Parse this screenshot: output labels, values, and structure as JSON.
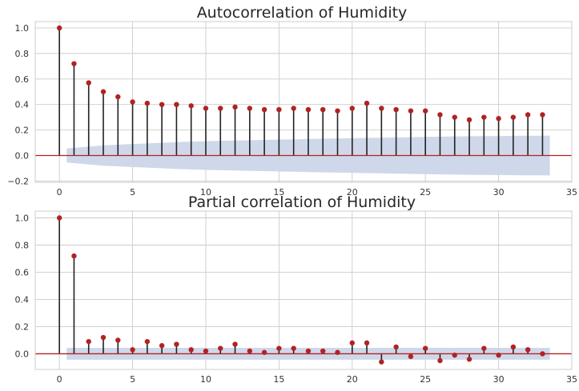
{
  "chart_data": [
    {
      "type": "stem",
      "title": "Autocorrelation of Humidity",
      "xlabel": "",
      "ylabel": "",
      "xlim": [
        -1.65,
        35.0
      ],
      "ylim": [
        -0.21,
        1.05
      ],
      "xticks": [
        0,
        5,
        10,
        15,
        20,
        25,
        30,
        35
      ],
      "yticks": [
        -0.2,
        0.0,
        0.2,
        0.4,
        0.6,
        0.8,
        1.0
      ],
      "ytick_labels": [
        "−0.2",
        "0.0",
        "0.2",
        "0.4",
        "0.6",
        "0.8",
        "1.0"
      ],
      "grid": true,
      "lags": [
        0,
        1,
        2,
        3,
        4,
        5,
        6,
        7,
        8,
        9,
        10,
        11,
        12,
        13,
        14,
        15,
        16,
        17,
        18,
        19,
        20,
        21,
        22,
        23,
        24,
        25,
        26,
        27,
        28,
        29,
        30,
        31,
        32,
        33
      ],
      "values": [
        1.0,
        0.72,
        0.57,
        0.5,
        0.46,
        0.42,
        0.41,
        0.4,
        0.4,
        0.39,
        0.37,
        0.37,
        0.38,
        0.37,
        0.36,
        0.36,
        0.37,
        0.36,
        0.36,
        0.35,
        0.37,
        0.41,
        0.37,
        0.36,
        0.35,
        0.35,
        0.32,
        0.3,
        0.28,
        0.3,
        0.29,
        0.3,
        0.32,
        0.32
      ],
      "confint_upper": [
        0.05,
        0.06,
        0.07,
        0.08,
        0.085,
        0.09,
        0.095,
        0.1,
        0.105,
        0.11,
        0.112,
        0.115,
        0.118,
        0.12,
        0.122,
        0.125,
        0.127,
        0.13,
        0.132,
        0.134,
        0.136,
        0.138,
        0.14,
        0.142,
        0.144,
        0.146,
        0.148,
        0.15,
        0.151,
        0.152,
        0.153,
        0.154,
        0.155,
        0.156
      ],
      "colors": {
        "marker": "#b22222",
        "stem": "#222222",
        "baseline": "#b22222",
        "band": "#ccd6e9"
      }
    },
    {
      "type": "stem",
      "title": "Partial correlation of Humidity",
      "xlabel": "",
      "ylabel": "",
      "xlim": [
        -1.65,
        35.0
      ],
      "ylim": [
        -0.115,
        1.05
      ],
      "xticks": [
        0,
        5,
        10,
        15,
        20,
        25,
        30,
        35
      ],
      "yticks": [
        0.0,
        0.2,
        0.4,
        0.6,
        0.8,
        1.0
      ],
      "ytick_labels": [
        "0.0",
        "0.2",
        "0.4",
        "0.6",
        "0.8",
        "1.0"
      ],
      "grid": true,
      "lags": [
        0,
        1,
        2,
        3,
        4,
        5,
        6,
        7,
        8,
        9,
        10,
        11,
        12,
        13,
        14,
        15,
        16,
        17,
        18,
        19,
        20,
        21,
        22,
        23,
        24,
        25,
        26,
        27,
        28,
        29,
        30,
        31,
        32,
        33
      ],
      "values": [
        1.0,
        0.72,
        0.09,
        0.12,
        0.1,
        0.03,
        0.09,
        0.06,
        0.07,
        0.03,
        0.02,
        0.04,
        0.07,
        0.02,
        0.01,
        0.04,
        0.04,
        0.02,
        0.02,
        0.01,
        0.08,
        0.08,
        -0.06,
        0.05,
        -0.02,
        0.04,
        -0.05,
        -0.01,
        -0.04,
        0.04,
        -0.01,
        0.05,
        0.03,
        0.0
      ],
      "confint_upper": 0.044,
      "colors": {
        "marker": "#b22222",
        "stem": "#222222",
        "baseline": "#b22222",
        "band": "#ccd6e9"
      }
    }
  ]
}
